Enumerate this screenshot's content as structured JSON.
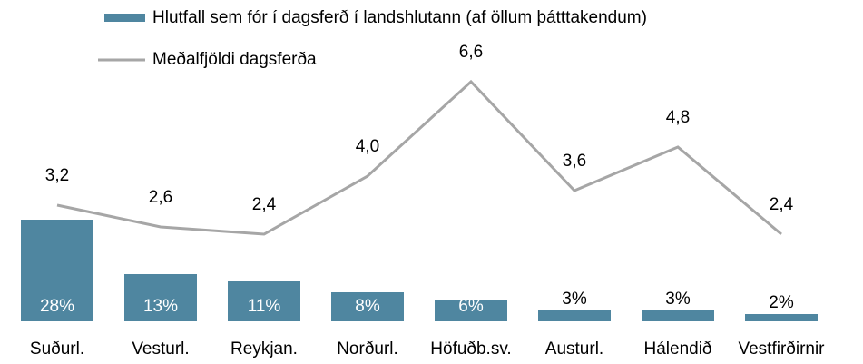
{
  "chart_data": {
    "type": "bar-line",
    "categories": [
      "Suðurl.",
      "Vesturl.",
      "Reykjan.",
      "Norðurl.",
      "Höfuðb.sv.",
      "Austurl.",
      "Hálendið",
      "Vestfirðirnir"
    ],
    "series": [
      {
        "name": "Hlutfall sem fór í dagsferð í landshlutann (af öllum þátttakendum)",
        "type": "bar",
        "color": "#4f86a0",
        "values": [
          28,
          13,
          11,
          8,
          6,
          3,
          3,
          2
        ],
        "value_labels": [
          "28%",
          "13%",
          "11%",
          "8%",
          "6%",
          "3%",
          "3%",
          "2%"
        ]
      },
      {
        "name": "Meðalfjöldi dagsferða",
        "type": "line",
        "axis": "y2",
        "color": "#a6a6a6",
        "values": [
          3.2,
          2.6,
          2.4,
          4.0,
          6.6,
          3.6,
          4.8,
          2.4
        ],
        "value_labels": [
          "3,2",
          "2,6",
          "2,4",
          "4,0",
          "6,6",
          "3,6",
          "4,8",
          "2,4"
        ]
      }
    ],
    "ylim": [
      0,
      70
    ],
    "y2lim": [
      0,
      7
    ]
  }
}
